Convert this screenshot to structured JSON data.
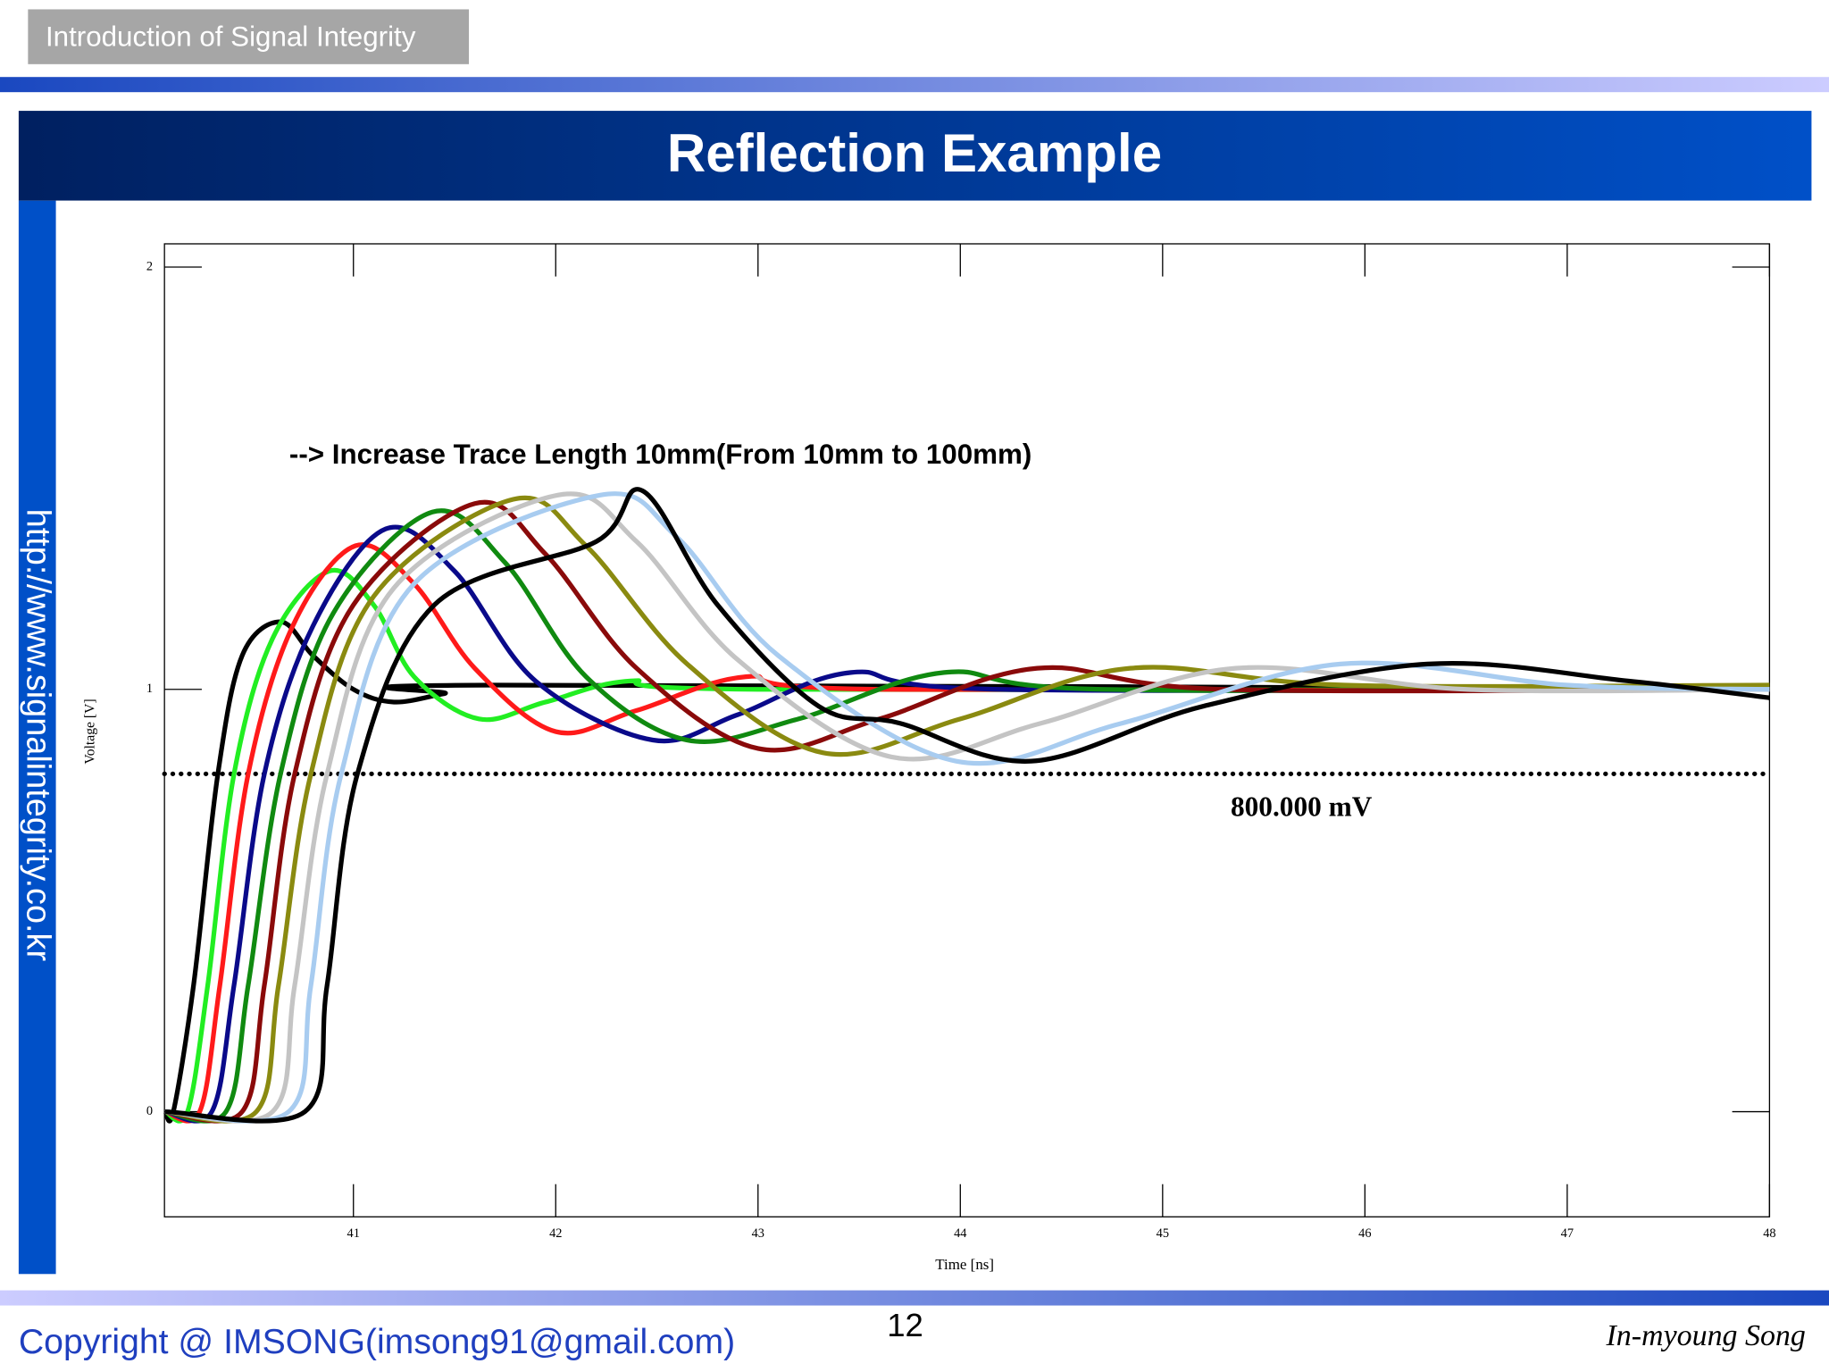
{
  "slide": {
    "header_tab": "Introduction of Signal Integrity",
    "title": "Reflection Example",
    "sidebar_url": "http://www.signalintegrity.co.kr",
    "copyright": "Copyright @ IMSONG(imsong91@gmail.com)",
    "page_number": 12,
    "author": "In-myoung Song"
  },
  "chart_data": {
    "type": "line",
    "annotation": "--> Increase Trace Length 10mm(From 10mm to 100mm)",
    "x_label": "Time [ns]",
    "y_label": "Voltage [V]",
    "xlim": [
      40.066,
      48
    ],
    "ylim": [
      -0.249,
      2.055
    ],
    "xticks": [
      41,
      42,
      43,
      44,
      45,
      46,
      47,
      48
    ],
    "yticks": [
      0,
      1,
      2
    ],
    "reference_line": {
      "value": 0.8,
      "label": "800.000 mV"
    },
    "series": [
      {
        "color": "#000000",
        "x": [
          40.07,
          40.11,
          40.21,
          40.33,
          40.45,
          40.64,
          40.8,
          41.0,
          41.2,
          41.45,
          41.7,
          48
        ],
        "values": [
          0,
          0,
          0.3,
          0.8,
          1.08,
          1.16,
          1.08,
          1.0,
          0.97,
          0.99,
          1.01,
          1.0
        ]
      },
      {
        "color": "#22ee22",
        "x": [
          40.07,
          40.18,
          40.28,
          40.41,
          40.6,
          40.88,
          41.1,
          41.3,
          41.62,
          41.95,
          42.37,
          43,
          48
        ],
        "values": [
          0,
          0,
          0.3,
          0.8,
          1.12,
          1.28,
          1.2,
          1.03,
          0.93,
          0.97,
          1.02,
          1.0,
          1.0
        ]
      },
      {
        "color": "#ff1a1a",
        "x": [
          40.07,
          40.24,
          40.34,
          40.48,
          40.7,
          41.01,
          41.3,
          41.6,
          42.0,
          42.4,
          42.94,
          43.6,
          48
        ],
        "values": [
          0,
          0,
          0.3,
          0.8,
          1.15,
          1.34,
          1.25,
          1.05,
          0.9,
          0.95,
          1.03,
          1.0,
          1.0
        ]
      },
      {
        "color": "#0a0a8a",
        "x": [
          40.07,
          40.3,
          40.41,
          40.56,
          40.8,
          41.16,
          41.5,
          41.9,
          42.48,
          42.9,
          43.46,
          44.2,
          48
        ],
        "values": [
          0,
          0,
          0.3,
          0.8,
          1.15,
          1.38,
          1.28,
          1.02,
          0.88,
          0.94,
          1.04,
          1.0,
          1.0
        ]
      },
      {
        "color": "#108a10",
        "x": [
          40.07,
          40.37,
          40.48,
          40.64,
          40.9,
          41.39,
          41.75,
          42.15,
          42.65,
          43.2,
          43.92,
          44.7,
          48
        ],
        "values": [
          0,
          0,
          0.3,
          0.8,
          1.18,
          1.42,
          1.3,
          1.03,
          0.88,
          0.93,
          1.04,
          1.0,
          1.0
        ]
      },
      {
        "color": "#8a0a0a",
        "x": [
          40.07,
          40.45,
          40.56,
          40.71,
          41.0,
          41.6,
          41.95,
          42.4,
          43.0,
          43.6,
          44.38,
          45.3,
          48
        ],
        "values": [
          0,
          0,
          0.3,
          0.8,
          1.2,
          1.44,
          1.32,
          1.05,
          0.86,
          0.93,
          1.05,
          1.0,
          1.0
        ]
      },
      {
        "color": "#8a8a10",
        "x": [
          40.07,
          40.52,
          40.63,
          40.79,
          41.1,
          41.79,
          42.15,
          42.65,
          43.32,
          44.0,
          44.84,
          45.9,
          48
        ],
        "values": [
          0,
          0,
          0.3,
          0.8,
          1.22,
          1.45,
          1.34,
          1.06,
          0.85,
          0.93,
          1.05,
          1.01,
          1.01
        ]
      },
      {
        "color": "#c4c4c4",
        "x": [
          40.07,
          40.6,
          40.71,
          40.87,
          41.2,
          42.01,
          42.4,
          42.9,
          43.66,
          44.4,
          45.36,
          46.5,
          48
        ],
        "values": [
          0,
          0,
          0.3,
          0.8,
          1.24,
          1.46,
          1.35,
          1.07,
          0.84,
          0.92,
          1.05,
          1.0,
          1.0
        ]
      },
      {
        "color": "#a8ccf0",
        "x": [
          40.07,
          40.68,
          40.79,
          40.94,
          41.3,
          42.22,
          42.6,
          43.1,
          43.98,
          44.8,
          45.88,
          47.0,
          48
        ],
        "values": [
          0,
          0,
          0.3,
          0.8,
          1.25,
          1.46,
          1.36,
          1.08,
          0.83,
          0.92,
          1.06,
          1.01,
          1.0
        ]
      },
      {
        "color": "#000000",
        "x": [
          40.07,
          40.76,
          40.87,
          41.02,
          41.4,
          42.2,
          42.43,
          42.8,
          43.3,
          43.7,
          44.35,
          45.2,
          46.31,
          47.3,
          48
        ],
        "values": [
          0,
          0,
          0.3,
          0.8,
          1.2,
          1.35,
          1.47,
          1.2,
          0.96,
          0.92,
          0.83,
          0.96,
          1.06,
          1.02,
          0.98
        ]
      }
    ]
  }
}
